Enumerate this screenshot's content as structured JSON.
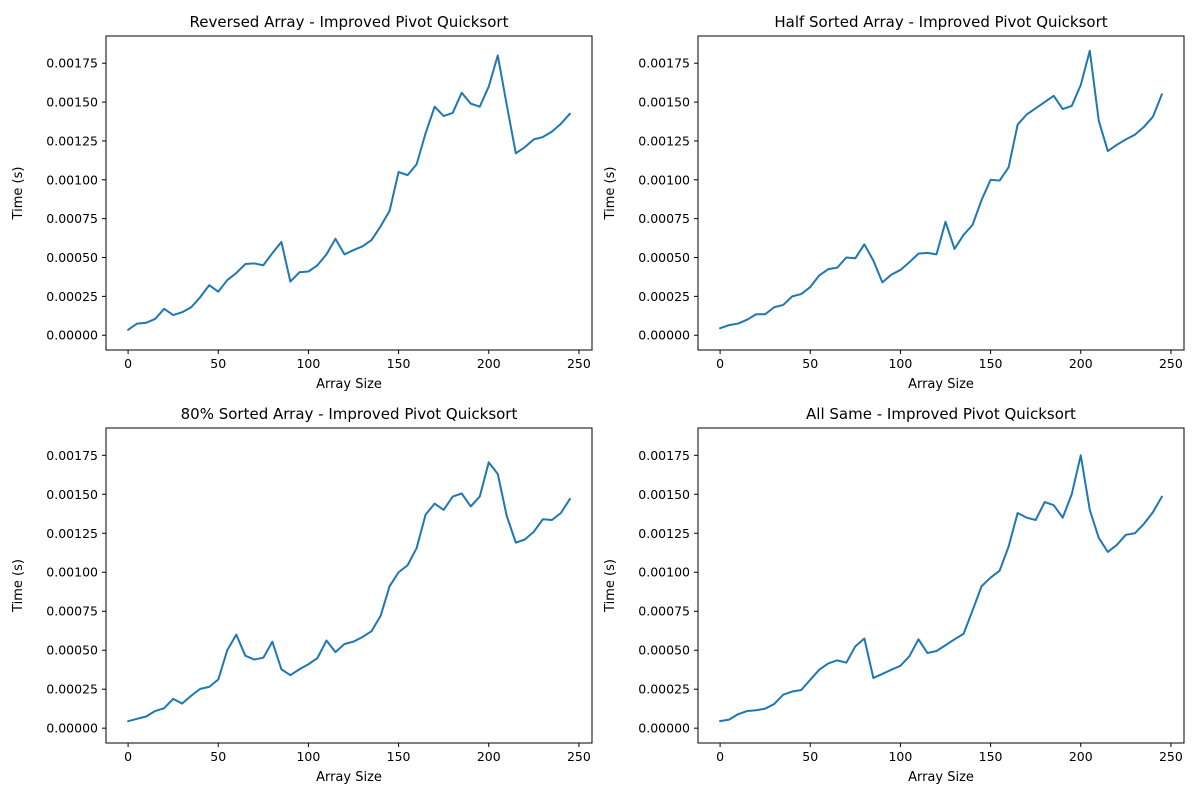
{
  "chart_data": [
    {
      "type": "line",
      "title": "Reversed Array - Improved Pivot Quicksort",
      "xlabel": "Array Size",
      "ylabel": "Time (s)",
      "xlim": [
        -12.25,
        257.25
      ],
      "ylim": [
        -9.5e-05,
        0.001925
      ],
      "xticks": [
        0,
        50,
        100,
        150,
        200,
        250
      ],
      "xtick_labels": [
        "0",
        "50",
        "100",
        "150",
        "200",
        "250"
      ],
      "yticks": [
        0,
        0.00025,
        0.0005,
        0.00075,
        0.001,
        0.00125,
        0.0015,
        0.00175
      ],
      "ytick_labels": [
        "0.00000",
        "0.00025",
        "0.00050",
        "0.00075",
        "0.00100",
        "0.00125",
        "0.00150",
        "0.00175"
      ],
      "grid": false,
      "series": [
        {
          "color": "#1f77b4",
          "x": [
            0,
            5,
            10,
            15,
            20,
            25,
            30,
            35,
            40,
            45,
            50,
            55,
            60,
            65,
            70,
            75,
            80,
            85,
            90,
            95,
            100,
            105,
            110,
            115,
            120,
            125,
            130,
            135,
            140,
            145,
            150,
            155,
            160,
            165,
            170,
            175,
            180,
            185,
            190,
            195,
            200,
            205,
            210,
            215,
            220,
            225,
            230,
            235,
            240,
            245
          ],
          "y": [
            3.5e-05,
            7.5e-05,
            8e-05,
            0.000105,
            0.00017,
            0.00013,
            0.000148,
            0.00018,
            0.000245,
            0.000322,
            0.00028,
            0.000355,
            0.0004,
            0.000458,
            0.000462,
            0.00045,
            0.000528,
            0.0006,
            0.000345,
            0.000405,
            0.00041,
            0.00045,
            0.00052,
            0.00062,
            0.00052,
            0.000548,
            0.000572,
            0.000612,
            0.0007,
            0.0008,
            0.00105,
            0.00103,
            0.0011,
            0.0013,
            0.00147,
            0.00141,
            0.00143,
            0.00156,
            0.00149,
            0.00147,
            0.0016,
            0.0018,
            0.00148,
            0.00117,
            0.00121,
            0.00126,
            0.001275,
            0.00131,
            0.00136,
            0.001425
          ]
        }
      ]
    },
    {
      "type": "line",
      "title": "Half Sorted Array - Improved Pivot Quicksort",
      "xlabel": "Array Size",
      "ylabel": "Time (s)",
      "xlim": [
        -12.25,
        257.25
      ],
      "ylim": [
        -9.5e-05,
        0.001925
      ],
      "xticks": [
        0,
        50,
        100,
        150,
        200,
        250
      ],
      "xtick_labels": [
        "0",
        "50",
        "100",
        "150",
        "200",
        "250"
      ],
      "yticks": [
        0,
        0.00025,
        0.0005,
        0.00075,
        0.001,
        0.00125,
        0.0015,
        0.00175
      ],
      "ytick_labels": [
        "0.00000",
        "0.00025",
        "0.00050",
        "0.00075",
        "0.00100",
        "0.00125",
        "0.00150",
        "0.00175"
      ],
      "grid": false,
      "series": [
        {
          "color": "#1f77b4",
          "x": [
            0,
            5,
            10,
            15,
            20,
            25,
            30,
            35,
            40,
            45,
            50,
            55,
            60,
            65,
            70,
            75,
            80,
            85,
            90,
            95,
            100,
            105,
            110,
            115,
            120,
            125,
            130,
            135,
            140,
            145,
            150,
            155,
            160,
            165,
            170,
            175,
            180,
            185,
            190,
            195,
            200,
            205,
            210,
            215,
            220,
            225,
            230,
            235,
            240,
            245
          ],
          "y": [
            4.5e-05,
            6.5e-05,
            7.5e-05,
            0.0001,
            0.000135,
            0.000135,
            0.00018,
            0.000195,
            0.00025,
            0.000265,
            0.00031,
            0.000385,
            0.000425,
            0.000435,
            0.0005,
            0.000495,
            0.000585,
            0.00048,
            0.00034,
            0.00039,
            0.00042,
            0.00047,
            0.000525,
            0.00053,
            0.00052,
            0.00073,
            0.000555,
            0.000645,
            0.00071,
            0.00087,
            0.001,
            0.000995,
            0.00108,
            0.001355,
            0.00142,
            0.00146,
            0.0015,
            0.00154,
            0.001455,
            0.001475,
            0.00161,
            0.00183,
            0.00138,
            0.001185,
            0.001225,
            0.00126,
            0.00129,
            0.00134,
            0.001405,
            0.00155
          ]
        }
      ]
    },
    {
      "type": "line",
      "title": "80% Sorted Array - Improved Pivot Quicksort",
      "xlabel": "Array Size",
      "ylabel": "Time (s)",
      "xlim": [
        -12.25,
        257.25
      ],
      "ylim": [
        -9.5e-05,
        0.001925
      ],
      "xticks": [
        0,
        50,
        100,
        150,
        200,
        250
      ],
      "xtick_labels": [
        "0",
        "50",
        "100",
        "150",
        "200",
        "250"
      ],
      "yticks": [
        0,
        0.00025,
        0.0005,
        0.00075,
        0.001,
        0.00125,
        0.0015,
        0.00175
      ],
      "ytick_labels": [
        "0.00000",
        "0.00025",
        "0.00050",
        "0.00075",
        "0.00100",
        "0.00125",
        "0.00150",
        "0.00175"
      ],
      "grid": false,
      "series": [
        {
          "color": "#1f77b4",
          "x": [
            0,
            5,
            10,
            15,
            20,
            25,
            30,
            35,
            40,
            45,
            50,
            55,
            60,
            65,
            70,
            75,
            80,
            85,
            90,
            95,
            100,
            105,
            110,
            115,
            120,
            125,
            130,
            135,
            140,
            145,
            150,
            155,
            160,
            165,
            170,
            175,
            180,
            185,
            190,
            195,
            200,
            205,
            210,
            215,
            220,
            225,
            230,
            235,
            240,
            245
          ],
          "y": [
            4.5e-05,
            6e-05,
            7.5e-05,
            0.00011,
            0.000128,
            0.000188,
            0.000158,
            0.000208,
            0.000252,
            0.000265,
            0.000312,
            0.0005,
            0.0006,
            0.000465,
            0.00044,
            0.000452,
            0.000555,
            0.000378,
            0.00034,
            0.000378,
            0.00041,
            0.00045,
            0.000562,
            0.000488,
            0.00054,
            0.000555,
            0.000585,
            0.000622,
            0.00072,
            0.00091,
            0.001,
            0.001045,
            0.001155,
            0.00137,
            0.00144,
            0.0014,
            0.001485,
            0.001505,
            0.001422,
            0.001485,
            0.001705,
            0.00163,
            0.00136,
            0.00119,
            0.00121,
            0.00126,
            0.00134,
            0.001335,
            0.00138,
            0.00147
          ]
        }
      ]
    },
    {
      "type": "line",
      "title": "All Same - Improved Pivot Quicksort",
      "xlabel": "Array Size",
      "ylabel": "Time (s)",
      "xlim": [
        -12.25,
        257.25
      ],
      "ylim": [
        -9.5e-05,
        0.001925
      ],
      "xticks": [
        0,
        50,
        100,
        150,
        200,
        250
      ],
      "xtick_labels": [
        "0",
        "50",
        "100",
        "150",
        "200",
        "250"
      ],
      "yticks": [
        0,
        0.00025,
        0.0005,
        0.00075,
        0.001,
        0.00125,
        0.0015,
        0.00175
      ],
      "ytick_labels": [
        "0.00000",
        "0.00025",
        "0.00050",
        "0.00075",
        "0.00100",
        "0.00125",
        "0.00150",
        "0.00175"
      ],
      "grid": false,
      "series": [
        {
          "color": "#1f77b4",
          "x": [
            0,
            5,
            10,
            15,
            20,
            25,
            30,
            35,
            40,
            45,
            50,
            55,
            60,
            65,
            70,
            75,
            80,
            85,
            90,
            95,
            100,
            105,
            110,
            115,
            120,
            125,
            130,
            135,
            140,
            145,
            150,
            155,
            160,
            165,
            170,
            175,
            180,
            185,
            190,
            195,
            200,
            205,
            210,
            215,
            220,
            225,
            230,
            235,
            240,
            245
          ],
          "y": [
            4.5e-05,
            5.5e-05,
            9e-05,
            0.00011,
            0.000115,
            0.000125,
            0.000155,
            0.000215,
            0.000235,
            0.000245,
            0.00031,
            0.000375,
            0.000415,
            0.000435,
            0.00042,
            0.000525,
            0.000575,
            0.000322,
            0.000348,
            0.000375,
            0.0004,
            0.000462,
            0.00057,
            0.000482,
            0.000495,
            0.000532,
            0.00057,
            0.000605,
            0.000755,
            0.00091,
            0.000965,
            0.00101,
            0.001165,
            0.00138,
            0.00135,
            0.001335,
            0.00145,
            0.00143,
            0.00135,
            0.0015,
            0.00175,
            0.0014,
            0.00122,
            0.00113,
            0.001175,
            0.00124,
            0.00125,
            0.00131,
            0.001385,
            0.001485
          ]
        }
      ]
    }
  ]
}
